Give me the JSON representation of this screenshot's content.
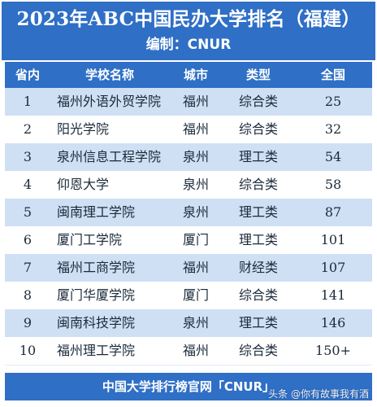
{
  "header": {
    "title": "2023年ABC中国民办大学排名（福建）",
    "subtitle": "编制：CNUR"
  },
  "table": {
    "columns": [
      "省内",
      "学校名称",
      "城市",
      "类型",
      "全国"
    ],
    "rows": [
      {
        "rank": "1",
        "school": "福州外语外贸学院",
        "city": "福州",
        "type": "综合类",
        "national": "25"
      },
      {
        "rank": "2",
        "school": "阳光学院",
        "city": "福州",
        "type": "综合类",
        "national": "32"
      },
      {
        "rank": "3",
        "school": "泉州信息工程学院",
        "city": "泉州",
        "type": "理工类",
        "national": "54"
      },
      {
        "rank": "4",
        "school": "仰恩大学",
        "city": "泉州",
        "type": "综合类",
        "national": "58"
      },
      {
        "rank": "5",
        "school": "闽南理工学院",
        "city": "泉州",
        "type": "理工类",
        "national": "87"
      },
      {
        "rank": "6",
        "school": "厦门工学院",
        "city": "厦门",
        "type": "理工类",
        "national": "101"
      },
      {
        "rank": "7",
        "school": "福州工商学院",
        "city": "福州",
        "type": "财经类",
        "national": "107"
      },
      {
        "rank": "8",
        "school": "厦门华厦学院",
        "city": "厦门",
        "type": "综合类",
        "national": "141"
      },
      {
        "rank": "9",
        "school": "闽南科技学院",
        "city": "泉州",
        "type": "理工类",
        "national": "146"
      },
      {
        "rank": "10",
        "school": "福州理工学院",
        "city": "福州",
        "type": "综合类",
        "national": "150+"
      }
    ]
  },
  "footer": {
    "text": "中国大学排行榜官网「CNUR」"
  },
  "watermark": {
    "text": "头条 @你有故事我有酒"
  },
  "colors": {
    "header_bg": "#2f6fc6",
    "row_alt_bg": "#cfe0f5",
    "row_bg": "#ffffff",
    "header_text": "#ffffff"
  }
}
